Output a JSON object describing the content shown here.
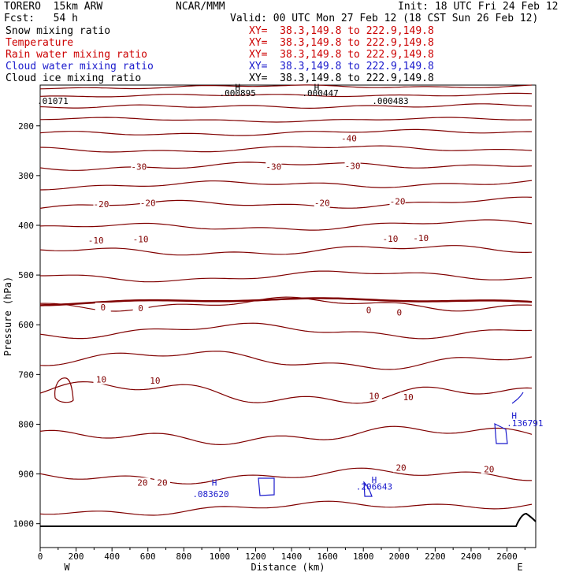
{
  "header": {
    "model_left": "TORERO  15km ARW",
    "org": "NCAR/MMM",
    "init": "Init: 18 UTC Fri 24 Feb 12",
    "fcst": "Fcst:   54 h",
    "valid": "Valid: 00 UTC Mon 27 Feb 12 (18 CST Sun 26 Feb 12)"
  },
  "fields": [
    {
      "label": "Snow mixing ratio",
      "xy": "XY=  38.3,149.8 to 222.9,149.8",
      "color": "#000000"
    },
    {
      "label": "Temperature",
      "xy": "XY=  38.3,149.8 to 222.9,149.8",
      "color": "#cc0000"
    },
    {
      "label": "Rain water mixing ratio",
      "xy": "XY=  38.3,149.8 to 222.9,149.8",
      "color": "#cc0000"
    },
    {
      "label": "Cloud water mixing ratio",
      "xy": "XY=  38.3,149.8 to 222.9,149.8",
      "color": "#1a1acc"
    },
    {
      "label": "Cloud ice mixing ratio",
      "xy": "XY=  38.3,149.8 to 222.9,149.8",
      "color": "#000000"
    }
  ],
  "chart_data": {
    "type": "line",
    "xlabel": "Distance (km)",
    "ylabel": "Pressure (hPa)",
    "x_ticks": [
      0,
      200,
      400,
      600,
      800,
      1000,
      1200,
      1400,
      1600,
      1800,
      2000,
      2200,
      2400,
      2600
    ],
    "y_ticks": [
      200,
      300,
      400,
      500,
      600,
      700,
      800,
      900,
      1000
    ],
    "xlim": [
      0,
      2760
    ],
    "ylim": [
      1048,
      118
    ],
    "y_scale": "linear",
    "x_end_labels": {
      "left": "W",
      "right": "E"
    },
    "temperature_labels": [
      {
        "text": "-40",
        "x": 1720,
        "p": 225
      },
      {
        "text": "-30",
        "x": 550,
        "p": 282
      },
      {
        "text": "-30",
        "x": 1300,
        "p": 282
      },
      {
        "text": "-30",
        "x": 1740,
        "p": 280
      },
      {
        "text": "-20",
        "x": 340,
        "p": 357
      },
      {
        "text": "-20",
        "x": 600,
        "p": 355
      },
      {
        "text": "-20",
        "x": 1570,
        "p": 355
      },
      {
        "text": "-20",
        "x": 1990,
        "p": 352
      },
      {
        "text": "-10",
        "x": 310,
        "p": 430
      },
      {
        "text": "-10",
        "x": 560,
        "p": 428
      },
      {
        "text": "-10",
        "x": 1950,
        "p": 427
      },
      {
        "text": "-10",
        "x": 2120,
        "p": 425
      },
      {
        "text": "0",
        "x": 350,
        "p": 565
      },
      {
        "text": "0",
        "x": 560,
        "p": 566
      },
      {
        "text": "0",
        "x": 1830,
        "p": 570
      },
      {
        "text": "0",
        "x": 2000,
        "p": 575
      },
      {
        "text": "10",
        "x": 340,
        "p": 710
      },
      {
        "text": "10",
        "x": 640,
        "p": 712
      },
      {
        "text": "10",
        "x": 1860,
        "p": 743
      },
      {
        "text": "10",
        "x": 2050,
        "p": 745
      },
      {
        "text": "20",
        "x": 570,
        "p": 917
      },
      {
        "text": "20",
        "x": 680,
        "p": 917
      },
      {
        "text": "20",
        "x": 2010,
        "p": 887
      },
      {
        "text": "20",
        "x": 2500,
        "p": 890
      }
    ],
    "mixing_ratio_labels": [
      {
        "text": "H",
        "x": 1100,
        "p": 122,
        "color": "#000000"
      },
      {
        "text": ".000895",
        "x": 1100,
        "p": 134,
        "color": "#000000"
      },
      {
        "text": "H",
        "x": 1540,
        "p": 122,
        "color": "#000000"
      },
      {
        "text": ".000447",
        "x": 1560,
        "p": 134,
        "color": "#000000"
      },
      {
        "text": ".01071",
        "x": 70,
        "p": 150,
        "color": "#000000"
      },
      {
        "text": ".000483",
        "x": 1950,
        "p": 150,
        "color": "#000000"
      },
      {
        "text": "H",
        "x": 970,
        "p": 917,
        "color": "#1a1acc"
      },
      {
        "text": ".083620",
        "x": 950,
        "p": 940,
        "color": "#1a1acc"
      },
      {
        "text": "H",
        "x": 1860,
        "p": 912,
        "color": "#1a1acc"
      },
      {
        "text": ".206643",
        "x": 1860,
        "p": 925,
        "color": "#1a1acc"
      },
      {
        "text": "H",
        "x": 2640,
        "p": 783,
        "color": "#1a1acc"
      },
      {
        "text": ".136791",
        "x": 2700,
        "p": 798,
        "color": "#1a1acc"
      }
    ],
    "colors": {
      "temperature": "#800000",
      "cloud_water": "#1a1acc",
      "ground": "#000000"
    }
  }
}
